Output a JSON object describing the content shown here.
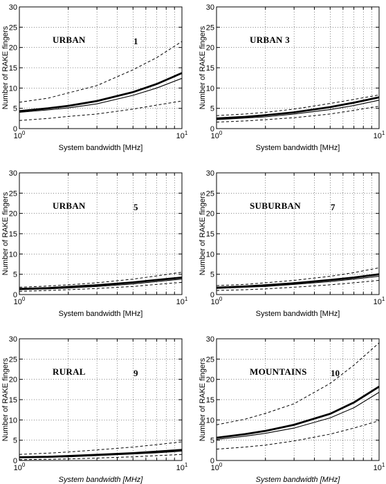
{
  "chart_data": [
    {
      "type": "line",
      "title": "URBAN",
      "number": "1",
      "xlabel": "System bandwidth [MHz]",
      "ylabel": "Number of RAKE fingers",
      "xscale": "log",
      "xlim": [
        1,
        10
      ],
      "ylim": [
        0,
        30
      ],
      "x_ticks": [
        "10^0",
        "10^1"
      ],
      "y_ticks": [
        0,
        5,
        10,
        15,
        20,
        25,
        30
      ],
      "grid": true,
      "x": [
        1,
        1.5,
        2,
        3,
        5,
        7,
        10
      ],
      "series": [
        {
          "style": "dashed",
          "values": [
            6.5,
            7.5,
            8.8,
            10.6,
            14.5,
            17.5,
            21.5
          ]
        },
        {
          "style": "thick",
          "values": [
            4.3,
            5.0,
            5.6,
            6.8,
            9.0,
            11.0,
            13.7
          ]
        },
        {
          "style": "thin",
          "values": [
            4.0,
            4.6,
            5.1,
            6.1,
            8.2,
            10.0,
            12.4
          ]
        },
        {
          "style": "dashed",
          "values": [
            2.0,
            2.5,
            3.0,
            3.6,
            4.8,
            5.8,
            6.8
          ]
        }
      ]
    },
    {
      "type": "line",
      "title": "URBAN 3",
      "number": "",
      "xlabel": "System bandwidth [MHz]",
      "ylabel": "Number of RAKE fingers",
      "xscale": "log",
      "xlim": [
        1,
        10
      ],
      "ylim": [
        0,
        30
      ],
      "x_ticks": [
        "10^0",
        "10^1"
      ],
      "y_ticks": [
        0,
        5,
        10,
        15,
        20,
        25,
        30
      ],
      "grid": true,
      "x": [
        1,
        1.5,
        2,
        3,
        5,
        7,
        10
      ],
      "series": [
        {
          "style": "dashed",
          "values": [
            3.2,
            3.6,
            4.0,
            4.8,
            6.2,
            7.2,
            8.3
          ]
        },
        {
          "style": "thick",
          "values": [
            2.5,
            2.9,
            3.3,
            4.0,
            5.3,
            6.4,
            7.7
          ]
        },
        {
          "style": "thin",
          "values": [
            2.2,
            2.6,
            2.9,
            3.6,
            4.7,
            5.7,
            7.0
          ]
        },
        {
          "style": "dashed",
          "values": [
            1.6,
            1.9,
            2.2,
            2.7,
            3.6,
            4.5,
            5.5
          ]
        }
      ]
    },
    {
      "type": "line",
      "title": "URBAN",
      "number": "5",
      "xlabel": "System bandwidth [MHz]",
      "ylabel": "Number of RAKE fingers",
      "xscale": "log",
      "xlim": [
        1,
        10
      ],
      "ylim": [
        0,
        30
      ],
      "x_ticks": [
        "10^0",
        "10^1"
      ],
      "y_ticks": [
        0,
        5,
        10,
        15,
        20,
        25,
        30
      ],
      "grid": true,
      "x": [
        1,
        1.5,
        2,
        3,
        5,
        7,
        10
      ],
      "series": [
        {
          "style": "dashed",
          "values": [
            1.8,
            2.1,
            2.4,
            2.9,
            3.8,
            4.6,
            5.5
          ]
        },
        {
          "style": "thick",
          "values": [
            1.4,
            1.6,
            1.9,
            2.3,
            3.0,
            3.6,
            4.2
          ]
        },
        {
          "style": "thin",
          "values": [
            1.2,
            1.4,
            1.6,
            2.0,
            2.6,
            3.2,
            3.8
          ]
        },
        {
          "style": "dashed",
          "values": [
            0.8,
            1.0,
            1.2,
            1.5,
            2.0,
            2.5,
            3.0
          ]
        }
      ]
    },
    {
      "type": "line",
      "title": "SUBURBAN",
      "number": "7",
      "xlabel": "System bandwidth [MHz]",
      "ylabel": "Number of RAKE fingers",
      "xscale": "log",
      "xlim": [
        1,
        10
      ],
      "ylim": [
        0,
        30
      ],
      "x_ticks": [
        "10^0",
        "10^1"
      ],
      "y_ticks": [
        0,
        5,
        10,
        15,
        20,
        25,
        30
      ],
      "grid": true,
      "x": [
        1,
        1.5,
        2,
        3,
        5,
        7,
        10
      ],
      "series": [
        {
          "style": "dashed",
          "values": [
            2.2,
            2.5,
            2.9,
            3.5,
            4.5,
            5.4,
            6.6
          ]
        },
        {
          "style": "thick",
          "values": [
            1.7,
            2.0,
            2.3,
            2.8,
            3.6,
            4.2,
            5.0
          ]
        },
        {
          "style": "thin",
          "values": [
            1.5,
            1.8,
            2.0,
            2.5,
            3.2,
            3.8,
            4.5
          ]
        },
        {
          "style": "dashed",
          "values": [
            1.0,
            1.2,
            1.4,
            1.8,
            2.4,
            2.9,
            3.5
          ]
        }
      ]
    },
    {
      "type": "line",
      "title": "RURAL",
      "number": "9",
      "xlabel": "System bandwidth [MHz]",
      "ylabel": "Number of RAKE fingers",
      "xscale": "log",
      "xlim": [
        1,
        10
      ],
      "ylim": [
        0,
        30
      ],
      "x_ticks": [
        "10^0",
        "10^1"
      ],
      "y_ticks": [
        0,
        5,
        10,
        15,
        20,
        25,
        30
      ],
      "grid": true,
      "x": [
        1,
        1.5,
        2,
        3,
        5,
        7,
        10
      ],
      "series": [
        {
          "style": "dashed",
          "values": [
            1.5,
            1.8,
            2.1,
            2.6,
            3.3,
            3.9,
            4.6
          ]
        },
        {
          "style": "thick",
          "values": [
            0.8,
            0.9,
            1.1,
            1.4,
            1.8,
            2.2,
            2.6
          ]
        },
        {
          "style": "thin",
          "values": [
            0.7,
            0.8,
            0.9,
            1.2,
            1.6,
            1.9,
            2.3
          ]
        },
        {
          "style": "dashed",
          "values": [
            0.2,
            0.3,
            0.4,
            0.6,
            0.9,
            1.2,
            1.5
          ]
        }
      ]
    },
    {
      "type": "line",
      "title": "MOUNTAINS",
      "number": "10",
      "xlabel": "System bandwidth [MHz]",
      "ylabel": "Number of RAKE fingers",
      "xscale": "log",
      "xlim": [
        1,
        10
      ],
      "ylim": [
        0,
        30
      ],
      "x_ticks": [
        "10^0",
        "10^1"
      ],
      "y_ticks": [
        0,
        5,
        10,
        15,
        20,
        25,
        30
      ],
      "grid": true,
      "x": [
        1,
        1.5,
        2,
        3,
        5,
        7,
        10
      ],
      "series": [
        {
          "style": "dashed",
          "values": [
            8.8,
            10.2,
            11.6,
            14.0,
            19.0,
            23.5,
            29.0
          ]
        },
        {
          "style": "thick",
          "values": [
            5.6,
            6.5,
            7.3,
            8.8,
            11.5,
            14.3,
            18.2
          ]
        },
        {
          "style": "thin",
          "values": [
            5.2,
            6.0,
            6.7,
            8.0,
            10.5,
            13.0,
            16.8
          ]
        },
        {
          "style": "dashed",
          "values": [
            2.8,
            3.3,
            3.8,
            4.8,
            6.5,
            8.0,
            9.8
          ]
        }
      ]
    }
  ]
}
